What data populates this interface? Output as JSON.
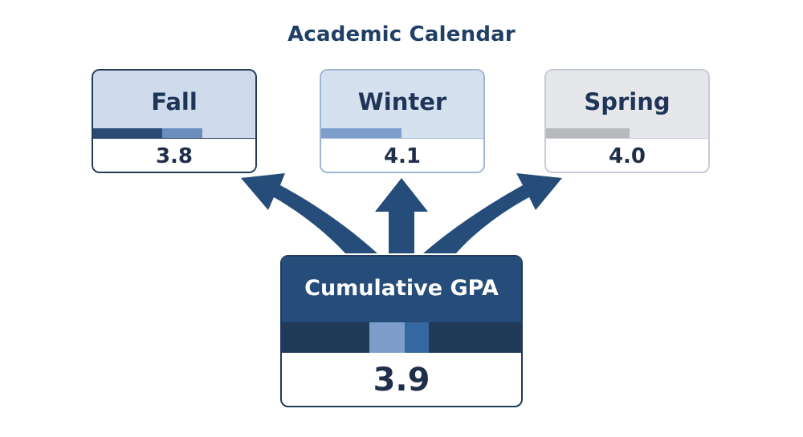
{
  "title": "Academic Calendar",
  "terms": [
    {
      "name": "Fall",
      "gpa": "3.8"
    },
    {
      "name": "Winter",
      "gpa": "4.1"
    },
    {
      "name": "Spring",
      "gpa": "4.0"
    }
  ],
  "cumulative": {
    "label": "Cumulative GPA",
    "gpa": "3.9"
  },
  "colors": {
    "navy": "#264c7a",
    "dark_navy": "#223a59",
    "light_blue": "#7d9ecb",
    "pale_blue": "#cfdaea",
    "gray": "#e6e7ea"
  }
}
